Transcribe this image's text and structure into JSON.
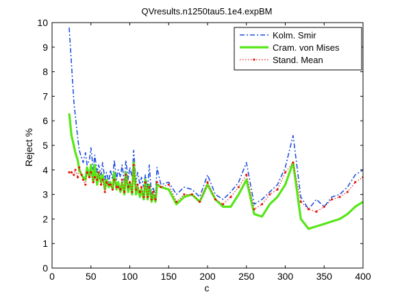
{
  "chart_data": {
    "type": "line",
    "title": "QVresults.n1250tau5.1e4.expBM",
    "xlabel": "c",
    "ylabel": "Reject %",
    "xlim": [
      0,
      400
    ],
    "ylim": [
      0,
      10
    ],
    "xticks": [
      0,
      50,
      100,
      150,
      200,
      250,
      300,
      350,
      400
    ],
    "yticks": [
      0,
      1,
      2,
      3,
      4,
      5,
      6,
      7,
      8,
      9,
      10
    ],
    "grid": false,
    "legend_position": "top-right",
    "series": [
      {
        "name": "Kolm. Smir",
        "color": "#1f4fe0",
        "style": "dash-dot",
        "x": [
          22,
          25,
          28,
          30,
          33,
          35,
          38,
          40,
          43,
          45,
          48,
          50,
          53,
          55,
          58,
          60,
          63,
          65,
          68,
          70,
          73,
          75,
          78,
          80,
          83,
          85,
          88,
          90,
          93,
          95,
          98,
          100,
          103,
          105,
          108,
          110,
          113,
          115,
          118,
          120,
          123,
          125,
          128,
          130,
          133,
          135,
          140,
          150,
          160,
          170,
          180,
          190,
          200,
          210,
          220,
          230,
          240,
          250,
          260,
          270,
          280,
          290,
          300,
          310,
          320,
          330,
          340,
          350,
          360,
          370,
          380,
          390,
          400
        ],
        "y": [
          9.8,
          8.3,
          6.8,
          6.2,
          5.3,
          4.8,
          4.5,
          4.3,
          4.7,
          4.2,
          4.4,
          4.9,
          4.0,
          4.6,
          3.9,
          4.2,
          3.8,
          4.3,
          3.6,
          3.9,
          3.5,
          4.0,
          3.6,
          4.4,
          3.6,
          4.0,
          3.7,
          4.2,
          3.5,
          4.4,
          3.6,
          4.1,
          3.7,
          4.8,
          3.5,
          3.9,
          3.4,
          3.7,
          3.3,
          3.8,
          3.2,
          4.2,
          3.0,
          3.3,
          2.9,
          4.1,
          3.4,
          3.5,
          3.0,
          3.3,
          3.2,
          2.9,
          3.8,
          3.0,
          2.8,
          3.1,
          3.5,
          4.3,
          2.6,
          2.8,
          3.1,
          3.4,
          4.1,
          5.4,
          2.9,
          2.4,
          2.8,
          2.5,
          2.9,
          3.0,
          3.3,
          3.8,
          4.0
        ]
      },
      {
        "name": "Cram. von Mises",
        "color": "#55e617",
        "style": "solid",
        "x": [
          22,
          25,
          28,
          30,
          33,
          35,
          38,
          40,
          43,
          45,
          48,
          50,
          53,
          55,
          58,
          60,
          63,
          65,
          68,
          70,
          73,
          75,
          78,
          80,
          83,
          85,
          88,
          90,
          93,
          95,
          98,
          100,
          103,
          105,
          108,
          110,
          113,
          115,
          118,
          120,
          123,
          125,
          128,
          130,
          133,
          135,
          140,
          150,
          160,
          170,
          180,
          190,
          200,
          210,
          220,
          230,
          240,
          250,
          260,
          270,
          280,
          290,
          300,
          310,
          320,
          330,
          340,
          350,
          360,
          370,
          380,
          390,
          400
        ],
        "y": [
          6.3,
          5.4,
          5.0,
          4.7,
          4.4,
          4.0,
          3.8,
          3.7,
          3.6,
          4.1,
          3.7,
          4.2,
          3.5,
          4.2,
          3.4,
          3.9,
          3.5,
          3.8,
          3.2,
          3.6,
          3.3,
          3.5,
          3.2,
          3.9,
          3.2,
          3.5,
          3.1,
          3.5,
          3.0,
          3.9,
          3.1,
          3.5,
          3.0,
          4.3,
          3.0,
          3.3,
          2.9,
          3.2,
          2.8,
          3.6,
          2.8,
          3.4,
          2.7,
          3.0,
          2.7,
          3.4,
          3.3,
          3.2,
          2.6,
          2.9,
          3.0,
          2.7,
          3.4,
          2.8,
          2.5,
          2.5,
          3.0,
          3.6,
          2.2,
          2.1,
          2.6,
          2.9,
          3.4,
          4.3,
          2.0,
          1.6,
          1.7,
          1.8,
          1.9,
          2.0,
          2.2,
          2.5,
          2.7
        ]
      },
      {
        "name": "Stand. Mean",
        "color": "#e4160d",
        "style": "dotted",
        "x": [
          22,
          25,
          28,
          30,
          33,
          35,
          38,
          40,
          43,
          45,
          48,
          50,
          53,
          55,
          58,
          60,
          63,
          65,
          68,
          70,
          73,
          75,
          78,
          80,
          83,
          85,
          88,
          90,
          93,
          95,
          98,
          100,
          103,
          105,
          108,
          110,
          113,
          115,
          118,
          120,
          123,
          125,
          128,
          130,
          133,
          135,
          140,
          150,
          160,
          170,
          180,
          190,
          200,
          210,
          220,
          230,
          240,
          250,
          260,
          270,
          280,
          290,
          300,
          310,
          320,
          330,
          340,
          350,
          360,
          370,
          380,
          390,
          400
        ],
        "y": [
          3.9,
          3.9,
          3.8,
          4.0,
          3.7,
          4.1,
          3.8,
          3.6,
          3.4,
          3.9,
          3.7,
          3.9,
          3.5,
          3.7,
          3.6,
          3.9,
          3.4,
          3.6,
          3.1,
          3.5,
          3.4,
          3.4,
          3.2,
          3.6,
          3.3,
          3.3,
          3.2,
          3.6,
          3.1,
          3.8,
          3.3,
          3.5,
          3.1,
          4.2,
          3.2,
          3.4,
          3.1,
          3.3,
          2.9,
          3.5,
          2.9,
          3.3,
          2.8,
          3.1,
          2.8,
          3.5,
          3.3,
          3.4,
          2.7,
          3.0,
          3.0,
          2.7,
          3.5,
          2.8,
          2.6,
          2.9,
          3.3,
          3.8,
          2.4,
          2.6,
          3.0,
          3.2,
          3.9,
          4.3,
          2.7,
          2.4,
          2.3,
          2.5,
          2.8,
          2.9,
          3.1,
          3.5,
          3.7
        ]
      }
    ]
  }
}
